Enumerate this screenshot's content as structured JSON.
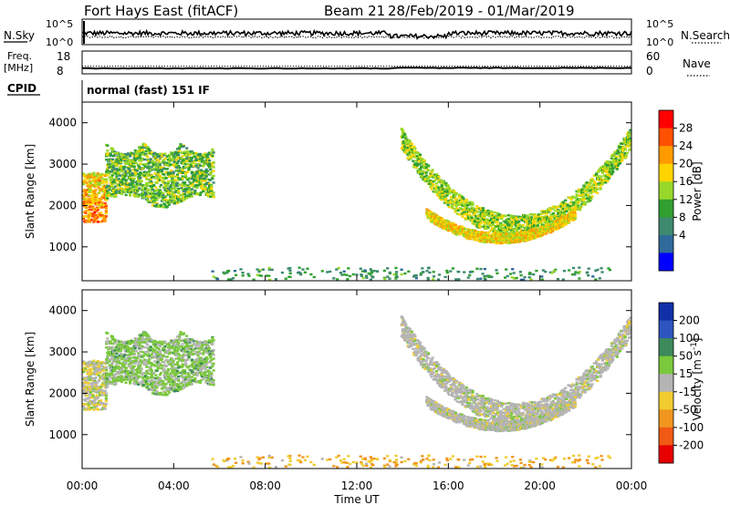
{
  "chart_data": {
    "type": "scatter",
    "title": {
      "station": "Fort Hays East (fitACF)",
      "beam": "Beam 21",
      "dates": "28/Feb/2019 - 01/Mar/2019"
    },
    "xlabel": "Time UT",
    "x_ticks": [
      "00:00",
      "04:00",
      "08:00",
      "12:00",
      "16:00",
      "20:00",
      "00:00"
    ],
    "xlim": [
      0,
      24
    ],
    "status_panels": {
      "noise": {
        "left_label": "N.Sky",
        "left_ticks": [
          "10^5",
          "10^0"
        ],
        "right_label": "N.Search",
        "right_ticks": [
          "10^5",
          "10^0"
        ],
        "left_series_level": 0.45,
        "right_series_level": 0.3,
        "break_hours": [
          13.5,
          16.0
        ]
      },
      "freq": {
        "left_label_top": "Freq.",
        "left_label_bottom": "[MHz]",
        "left_ticks": [
          "18",
          "8"
        ],
        "right_label": "Nave",
        "right_ticks": [
          "60",
          "0"
        ],
        "freq_mhz": 10.4,
        "nave": 20
      },
      "cpid": {
        "label": "CPID",
        "value": "normal (fast) 151 IF"
      }
    },
    "panels": [
      {
        "name": "power",
        "ylabel": "Slant Range [km]",
        "ylim": [
          180,
          4500
        ],
        "y_ticks": [
          1000,
          2000,
          3000,
          4000
        ],
        "colorbar": {
          "label": "Power [dB]",
          "tick_labels": [
            "28",
            "24",
            "20",
            "16",
            "12",
            "8",
            "4"
          ],
          "colors": [
            "#ff0000",
            "#ff5000",
            "#ff9a00",
            "#ffd400",
            "#98d82a",
            "#30a030",
            "#3d8a6e",
            "#2f6a9a",
            "#0000ff"
          ]
        }
      },
      {
        "name": "velocity",
        "ylabel": "Slant Range [km]",
        "ylim": [
          180,
          4500
        ],
        "y_ticks": [
          1000,
          2000,
          3000,
          4000
        ],
        "colorbar": {
          "label": "Velocity [m s",
          "label_superscript": "-1",
          "label_end": "]",
          "tick_labels": [
            "200",
            "100",
            "50",
            "15",
            "-15",
            "-50",
            "-100",
            "-200"
          ],
          "colors": [
            "#1030a8",
            "#2d55c0",
            "#3c8a5a",
            "#7ac83c",
            "#b4b4b4",
            "#f0cc30",
            "#f0961e",
            "#f05a14",
            "#e60000"
          ]
        }
      }
    ],
    "echo_regions": [
      {
        "name": "early ionospheric scatter",
        "time_start": 0.0,
        "time_end": 1.0,
        "range_start_km": 1600,
        "range_end_km": 2800,
        "power_db": 22,
        "velocity": -5
      },
      {
        "name": "early upper band",
        "time_start": 1.0,
        "time_end": 5.7,
        "range_start_km": 2100,
        "range_end_km": 3500,
        "power_db": 14,
        "velocity": 25
      },
      {
        "name": "afternoon arc outer",
        "time_start": 13.9,
        "time_end": 23.9,
        "range_start_km": 1500,
        "range_end_km": 3600,
        "power_db": 16,
        "velocity": 0
      },
      {
        "name": "afternoon arc inner",
        "time_start": 15.0,
        "time_end": 21.5,
        "range_start_km": 1200,
        "range_end_km": 1800,
        "power_db": 20,
        "velocity": 0
      },
      {
        "name": "near-range ground scatter",
        "time_start": 5.5,
        "time_end": 23.0,
        "range_start_km": 200,
        "range_end_km": 500,
        "power_db": 10,
        "velocity": -45
      }
    ]
  }
}
